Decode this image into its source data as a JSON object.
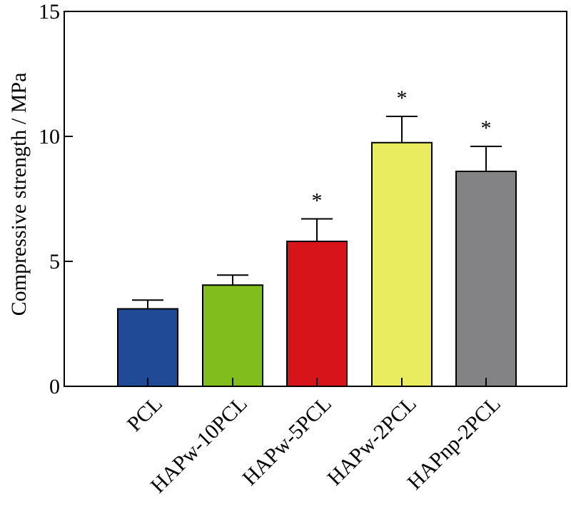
{
  "chart_data": {
    "type": "bar",
    "title": "",
    "xlabel": "",
    "ylabel": "Compressive strength / MPa",
    "ylim": [
      0,
      15
    ],
    "yticks": [
      0,
      5,
      10,
      15
    ],
    "categories": [
      "PCL",
      "HAPw-10PCL",
      "HAPw-5PCL",
      "HAPw-2PCL",
      "HAPnp-2PCL"
    ],
    "values": [
      3.1,
      4.05,
      5.8,
      9.75,
      8.6
    ],
    "errors": [
      0.35,
      0.4,
      0.9,
      1.05,
      1.0
    ],
    "significance": [
      "",
      "",
      "*",
      "*",
      "*"
    ],
    "colors": [
      "#214a96",
      "#82bd1e",
      "#d7141a",
      "#e8ec5e",
      "#838285"
    ],
    "grid": false,
    "legend": "none"
  }
}
